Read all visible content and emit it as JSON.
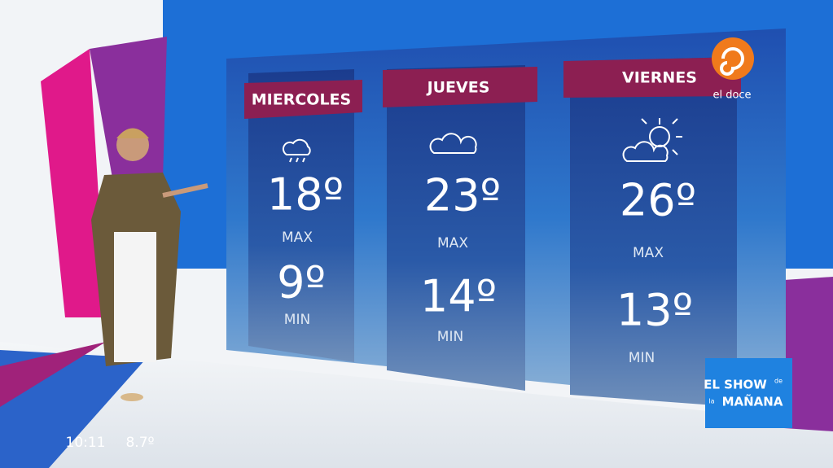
{
  "forecast": {
    "days": [
      {
        "name": "MIERCOLES",
        "max": "18º",
        "max_label": "MAX",
        "min": "9º",
        "min_label": "MIN"
      },
      {
        "name": "JUEVES",
        "max": "23º",
        "max_label": "MAX",
        "min": "14º",
        "min_label": "MIN"
      },
      {
        "name": "VIERNES",
        "max": "26º",
        "max_label": "MAX",
        "min": "13º",
        "min_label": "MIN"
      }
    ]
  },
  "channel": {
    "name": "el doce"
  },
  "show": {
    "line1": "EL SHOW",
    "de": "de",
    "la": "la",
    "line2": "MAÑANA"
  },
  "status": {
    "time": "10:11",
    "temperature": "8.7º"
  }
}
